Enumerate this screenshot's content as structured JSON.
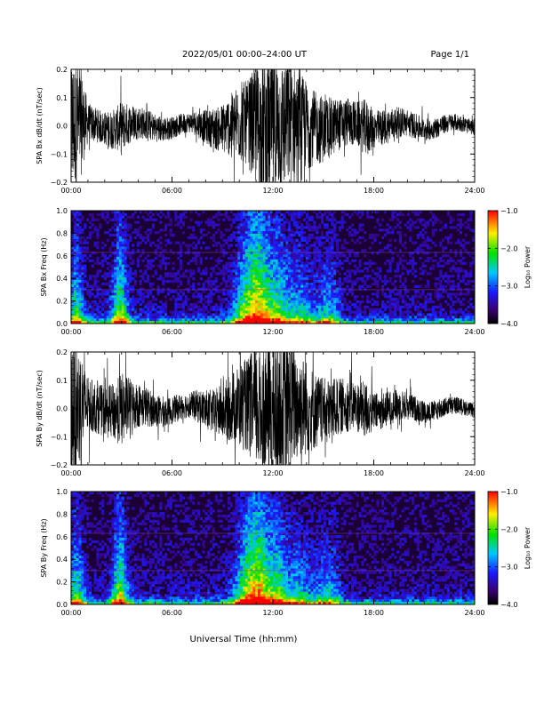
{
  "header": {
    "title": "2022/05/01   00:00–24:00  UT",
    "page": "Page 1/1"
  },
  "xlabel": "Universal Time (hh:mm)",
  "chart_data": [
    {
      "type": "line",
      "ylabel": "SPA Bx dB/dt (nT/sec)",
      "xlim": [
        0,
        24
      ],
      "ylim": [
        -0.2,
        0.2
      ],
      "x_ticks": [
        "00:00",
        "06:00",
        "12:00",
        "18:00",
        "24:00"
      ],
      "y_ticks": [
        "0.2",
        "0.1",
        "0.0",
        "−0.1",
        "−0.2"
      ],
      "amplitude_envelope": {
        "x": [
          0,
          0.5,
          1,
          1.5,
          2,
          2.5,
          3,
          3.5,
          4,
          5,
          6,
          7,
          8,
          8.5,
          9,
          9.5,
          10,
          10.5,
          11,
          11.5,
          12,
          12.5,
          13,
          13.5,
          14,
          14.5,
          15,
          16,
          17,
          17.5,
          18,
          19,
          20,
          21,
          22,
          23,
          24
        ],
        "y": [
          0.25,
          0.22,
          0.07,
          0.06,
          0.06,
          0.07,
          0.09,
          0.07,
          0.06,
          0.05,
          0.04,
          0.035,
          0.06,
          0.07,
          0.09,
          0.11,
          0.14,
          0.15,
          0.22,
          0.25,
          0.25,
          0.24,
          0.23,
          0.18,
          0.16,
          0.13,
          0.12,
          0.09,
          0.08,
          0.1,
          0.07,
          0.06,
          0.05,
          0.04,
          0.035,
          0.03,
          0.025
        ]
      }
    },
    {
      "type": "heatmap",
      "ylabel": "SPA Bx Freq (Hz)",
      "xlim": [
        0,
        24
      ],
      "ylim": [
        0,
        1.0
      ],
      "x_ticks": [
        "00:00",
        "06:00",
        "12:00",
        "18:00",
        "24:00"
      ],
      "y_ticks": [
        "1.0",
        "0.8",
        "0.6",
        "0.4",
        "0.2",
        "0.0"
      ],
      "colorbar": {
        "label": "Log₁₀ Power",
        "range": [
          -4.0,
          -1.0
        ],
        "ticks": [
          "−1.0",
          "−2.0",
          "−3.0",
          "−4.0"
        ]
      }
    },
    {
      "type": "line",
      "ylabel": "SPA By dB/dt (nT/sec)",
      "xlim": [
        0,
        24
      ],
      "ylim": [
        -0.2,
        0.2
      ],
      "x_ticks": [
        "00:00",
        "06:00",
        "12:00",
        "18:00",
        "24:00"
      ],
      "y_ticks": [
        "0.2",
        "0.1",
        "0.0",
        "−0.1",
        "−0.2"
      ],
      "amplitude_envelope": {
        "x": [
          0,
          0.5,
          1,
          1.5,
          2,
          2.5,
          3,
          3.5,
          4,
          5,
          6,
          7,
          8,
          8.5,
          9,
          9.5,
          10,
          10.5,
          11,
          11.5,
          12,
          12.5,
          13,
          13.5,
          14,
          14.5,
          15,
          16,
          17,
          17.5,
          18,
          19,
          20,
          21,
          22,
          23,
          24
        ],
        "y": [
          0.25,
          0.22,
          0.1,
          0.09,
          0.09,
          0.1,
          0.13,
          0.1,
          0.08,
          0.06,
          0.05,
          0.045,
          0.07,
          0.08,
          0.1,
          0.12,
          0.15,
          0.17,
          0.22,
          0.25,
          0.25,
          0.24,
          0.23,
          0.2,
          0.17,
          0.14,
          0.12,
          0.1,
          0.09,
          0.1,
          0.07,
          0.06,
          0.05,
          0.04,
          0.035,
          0.03,
          0.025
        ]
      }
    },
    {
      "type": "heatmap",
      "ylabel": "SPA By Freq (Hz)",
      "xlim": [
        0,
        24
      ],
      "ylim": [
        0,
        1.0
      ],
      "x_ticks": [
        "00:00",
        "06:00",
        "12:00",
        "18:00",
        "24:00"
      ],
      "y_ticks": [
        "1.0",
        "0.8",
        "0.6",
        "0.4",
        "0.2",
        "0.0"
      ],
      "colorbar": {
        "label": "Log₁₀ Power",
        "range": [
          -4.0,
          -1.0
        ],
        "ticks": [
          "−1.0",
          "−2.0",
          "−3.0",
          "−4.0"
        ]
      }
    }
  ]
}
